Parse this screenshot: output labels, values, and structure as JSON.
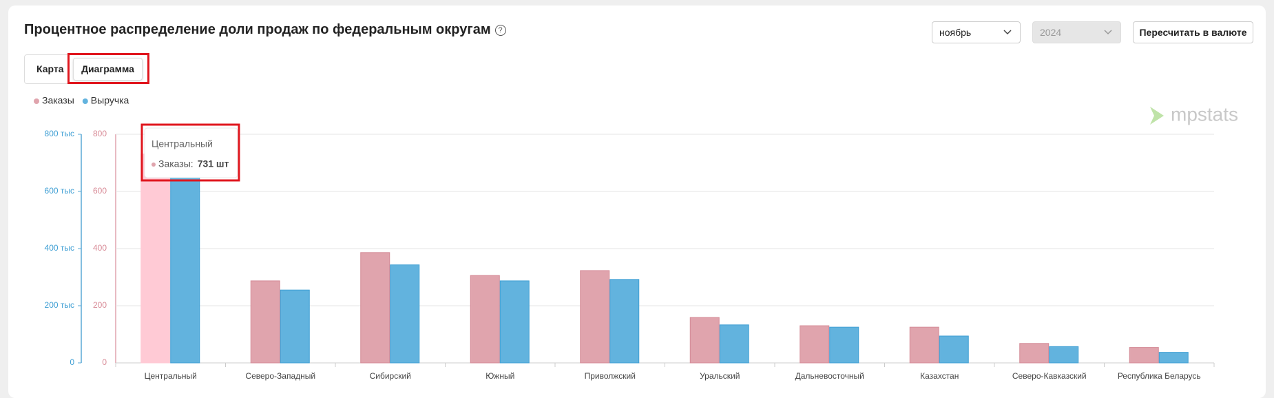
{
  "header": {
    "title": "Процентное распределение доли продаж по федеральным округам"
  },
  "controls": {
    "month": "ноябрь",
    "year": "2024",
    "recalc_button": "Пересчитать в валюте"
  },
  "tabs": [
    "Карта",
    "Диаграмма"
  ],
  "watermark": "mpstats",
  "tooltip": {
    "title": "Центральный",
    "series": "Заказы:",
    "value": "731 шт"
  },
  "chart_data": {
    "type": "bar",
    "categories": [
      "Центральный",
      "Северо-Западный",
      "Сибирский",
      "Южный",
      "Приволжский",
      "Уральский",
      "Дальневосточный",
      "Казахстан",
      "Северо-Кавказский",
      "Республика Беларусь"
    ],
    "series": [
      {
        "name": "Заказы",
        "color": "#e0a4ad",
        "values": [
          731,
          287,
          386,
          306,
          323,
          159,
          130,
          125,
          68,
          54
        ]
      },
      {
        "name": "Выручка",
        "color": "#62b3de",
        "axis": "y2",
        "values": [
          650000,
          255000,
          343000,
          287000,
          292000,
          133000,
          125000,
          94000,
          57000,
          37000
        ]
      }
    ],
    "ylim": [
      0,
      800
    ],
    "yticks": [
      0,
      200,
      400,
      600,
      800
    ],
    "y2lim": [
      0,
      800000
    ],
    "y2ticks": [
      0,
      {
        "value": 200000,
        "label": "200 тыс"
      },
      {
        "value": 400000,
        "label": "400 тыс"
      },
      {
        "value": 600000,
        "label": "600 тыс"
      },
      {
        "value": 800000,
        "label": "800 тыс"
      }
    ],
    "grid": true,
    "legend": "top-left"
  }
}
